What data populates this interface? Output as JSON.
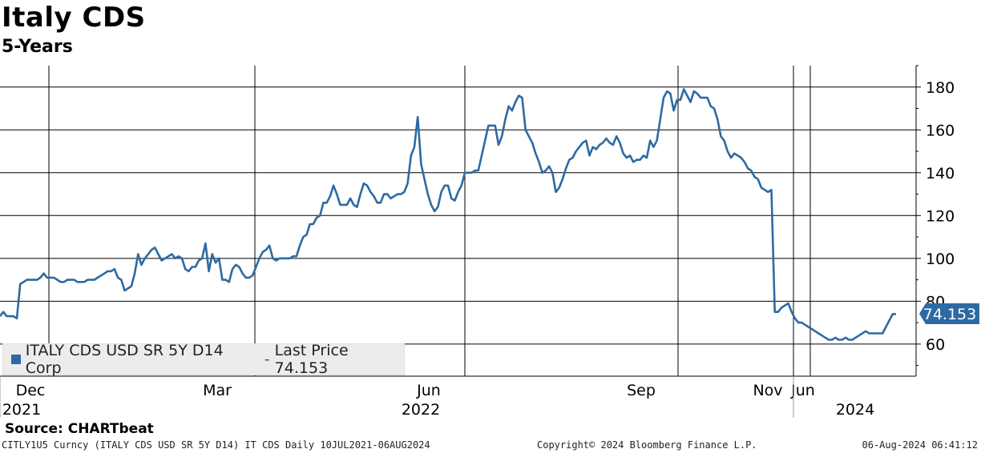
{
  "header": {
    "title": "Italy CDS",
    "subtitle": "5-Years"
  },
  "legend": {
    "label": "ITALY CDS USD SR 5Y D14 Corp",
    "separator": " - ",
    "last_label": "Last Price 74.153"
  },
  "last_price_badge": "74.153",
  "source": "Source:  CHARTbeat",
  "footer": {
    "left": "CITLY1U5 Curncy (ITALY CDS USD SR 5Y D14) IT CDS  Daily 10JUL2021-06AUG2024",
    "middle": "Copyright© 2024 Bloomberg Finance L.P.",
    "right": "06-Aug-2024 06:41:12"
  },
  "colors": {
    "series": "#2d6aa3",
    "grid": "#000000",
    "badge": "#2d6aa3"
  },
  "chart_data": {
    "type": "line",
    "title": "Italy CDS",
    "subtitle": "5-Years",
    "y_axis_side": "right",
    "ylim": [
      45,
      190
    ],
    "y_ticks": [
      60,
      80,
      100,
      120,
      140,
      160,
      180
    ],
    "x_ticks": [
      {
        "label": "Dec",
        "year": "2021"
      },
      {
        "label": "Mar",
        "year": ""
      },
      {
        "label": "Jun",
        "year": "2022"
      },
      {
        "label": "Sep",
        "year": ""
      },
      {
        "label": "Nov",
        "year": ""
      },
      {
        "label": "Jun",
        "year": ""
      },
      {
        "label": "",
        "year": "2024"
      }
    ],
    "grid": true,
    "legend_position": "bottom-left",
    "series": [
      {
        "name": "ITALY CDS USD SR 5Y D14 Corp - Last Price 74.153",
        "last_value": 74.153,
        "values": [
          73,
          75,
          73,
          73,
          73,
          72,
          88,
          89,
          90,
          90,
          90,
          90,
          91,
          93,
          91,
          91,
          91,
          90,
          89,
          89,
          90,
          90,
          90,
          89,
          89,
          89,
          90,
          90,
          90,
          91,
          92,
          93,
          94,
          94,
          95,
          91,
          90,
          85,
          86,
          87,
          93,
          102,
          97,
          100,
          102,
          104,
          105,
          102,
          99,
          100,
          101,
          102,
          100,
          101,
          100,
          95,
          94,
          96,
          96,
          99,
          100,
          107,
          94,
          102,
          98,
          100,
          90,
          90,
          89,
          95,
          97,
          96,
          93,
          91,
          91,
          92,
          96,
          100,
          103,
          104,
          106,
          100,
          99,
          100,
          100,
          100,
          100,
          101,
          101,
          106,
          110,
          111,
          116,
          116,
          119,
          120,
          126,
          126,
          129,
          134,
          130,
          125,
          125,
          125,
          128,
          125,
          124,
          130,
          135,
          134,
          131,
          129,
          126,
          126,
          130,
          130,
          128,
          129,
          130,
          130,
          131,
          135,
          148,
          152,
          166,
          144,
          137,
          130,
          125,
          122,
          124,
          131,
          134,
          134,
          128,
          127,
          131,
          134,
          140,
          140,
          140,
          141,
          141,
          148,
          155,
          162,
          162,
          162,
          153,
          157,
          165,
          171,
          169,
          173,
          176,
          175,
          160,
          157,
          154,
          149,
          145,
          140,
          141,
          143,
          140,
          131,
          133,
          137,
          142,
          146,
          147,
          150,
          152,
          154,
          155,
          148,
          152,
          151,
          153,
          154,
          156,
          154,
          153,
          157,
          154,
          149,
          147,
          148,
          145,
          146,
          146,
          148,
          147,
          155,
          152,
          155,
          165,
          175,
          178,
          177,
          169,
          174,
          174,
          179,
          176,
          173,
          178,
          177,
          175,
          175,
          175,
          171,
          170,
          165,
          157,
          155,
          150,
          147,
          149,
          148,
          147,
          145,
          142,
          141,
          138,
          137,
          133,
          132,
          131,
          132,
          75,
          75,
          77,
          78,
          79,
          75,
          72,
          70,
          70,
          69,
          68,
          67,
          66,
          65,
          64,
          63,
          62,
          62,
          63,
          62,
          62,
          63,
          62,
          62,
          63,
          64,
          65,
          66,
          65,
          65,
          65,
          65,
          65,
          68,
          71,
          74,
          74
        ]
      }
    ]
  }
}
